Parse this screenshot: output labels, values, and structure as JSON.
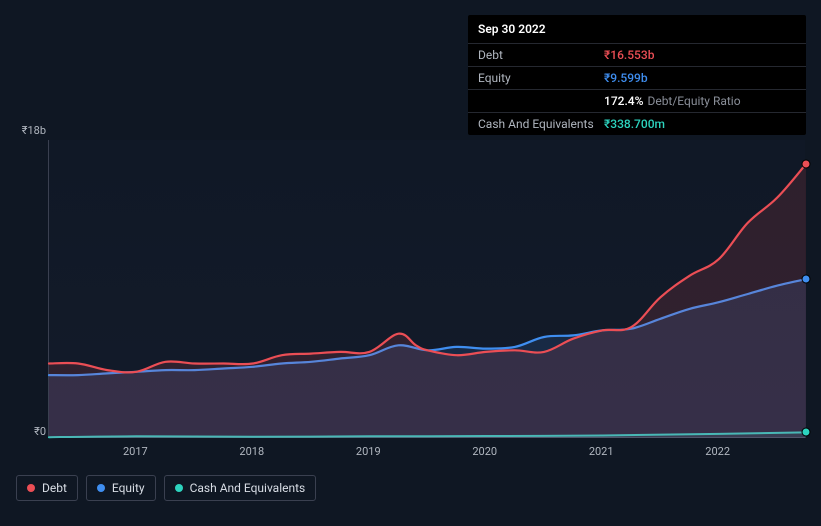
{
  "tooltip": {
    "date": "Sep 30 2022",
    "rows": [
      {
        "label": "Debt",
        "value": "₹16.553b",
        "color": "#eb4e55"
      },
      {
        "label": "Equity",
        "value": "₹9.599b",
        "color": "#3f8ef0"
      },
      {
        "label": "",
        "value": "172.4%",
        "suffix": "Debt/Equity Ratio",
        "color": "#ffffff"
      },
      {
        "label": "Cash And Equivalents",
        "value": "₹338.700m",
        "color": "#2dd4bf"
      }
    ]
  },
  "chart": {
    "type": "area",
    "background": "#0f1723",
    "plot_background": "#101a28",
    "grid_color": "#3a4050",
    "y_axis": {
      "top_label": "₹18b",
      "bottom_label": "₹0",
      "min": 0,
      "max": 18,
      "font_size": 11,
      "color": "#b0b6bf"
    },
    "x_axis": {
      "min": 2016.25,
      "max": 2022.75,
      "ticks": [
        {
          "pos": 2017,
          "label": "2017"
        },
        {
          "pos": 2018,
          "label": "2018"
        },
        {
          "pos": 2019,
          "label": "2019"
        },
        {
          "pos": 2020,
          "label": "2020"
        },
        {
          "pos": 2021,
          "label": "2021"
        },
        {
          "pos": 2022,
          "label": "2022"
        }
      ],
      "font_size": 11,
      "color": "#b0b6bf"
    },
    "series": [
      {
        "name": "Debt",
        "color": "#eb4e55",
        "fill": "rgba(235,78,85,0.14)",
        "width": 2.2,
        "endcap": true,
        "data": [
          {
            "x": 2016.25,
            "y": 4.5
          },
          {
            "x": 2016.5,
            "y": 4.5
          },
          {
            "x": 2016.75,
            "y": 4.1
          },
          {
            "x": 2017.0,
            "y": 4.0
          },
          {
            "x": 2017.25,
            "y": 4.6
          },
          {
            "x": 2017.5,
            "y": 4.5
          },
          {
            "x": 2017.75,
            "y": 4.5
          },
          {
            "x": 2018.0,
            "y": 4.5
          },
          {
            "x": 2018.25,
            "y": 5.0
          },
          {
            "x": 2018.5,
            "y": 5.1
          },
          {
            "x": 2018.75,
            "y": 5.2
          },
          {
            "x": 2019.0,
            "y": 5.2
          },
          {
            "x": 2019.25,
            "y": 6.3
          },
          {
            "x": 2019.4,
            "y": 5.6
          },
          {
            "x": 2019.5,
            "y": 5.3
          },
          {
            "x": 2019.75,
            "y": 5.0
          },
          {
            "x": 2020.0,
            "y": 5.2
          },
          {
            "x": 2020.25,
            "y": 5.3
          },
          {
            "x": 2020.5,
            "y": 5.2
          },
          {
            "x": 2020.75,
            "y": 6.0
          },
          {
            "x": 2021.0,
            "y": 6.5
          },
          {
            "x": 2021.25,
            "y": 6.7
          },
          {
            "x": 2021.5,
            "y": 8.5
          },
          {
            "x": 2021.75,
            "y": 9.8
          },
          {
            "x": 2022.0,
            "y": 10.8
          },
          {
            "x": 2022.25,
            "y": 13.0
          },
          {
            "x": 2022.5,
            "y": 14.5
          },
          {
            "x": 2022.75,
            "y": 16.55
          }
        ]
      },
      {
        "name": "Equity",
        "color": "#3f8ef0",
        "fill": "rgba(63,142,240,0.14)",
        "width": 2.2,
        "endcap": true,
        "data": [
          {
            "x": 2016.25,
            "y": 3.8
          },
          {
            "x": 2016.5,
            "y": 3.8
          },
          {
            "x": 2016.75,
            "y": 3.9
          },
          {
            "x": 2017.0,
            "y": 4.0
          },
          {
            "x": 2017.25,
            "y": 4.1
          },
          {
            "x": 2017.5,
            "y": 4.1
          },
          {
            "x": 2017.75,
            "y": 4.2
          },
          {
            "x": 2018.0,
            "y": 4.3
          },
          {
            "x": 2018.25,
            "y": 4.5
          },
          {
            "x": 2018.5,
            "y": 4.6
          },
          {
            "x": 2018.75,
            "y": 4.8
          },
          {
            "x": 2019.0,
            "y": 5.0
          },
          {
            "x": 2019.25,
            "y": 5.6
          },
          {
            "x": 2019.5,
            "y": 5.3
          },
          {
            "x": 2019.75,
            "y": 5.5
          },
          {
            "x": 2020.0,
            "y": 5.4
          },
          {
            "x": 2020.25,
            "y": 5.5
          },
          {
            "x": 2020.5,
            "y": 6.1
          },
          {
            "x": 2020.75,
            "y": 6.2
          },
          {
            "x": 2021.0,
            "y": 6.5
          },
          {
            "x": 2021.25,
            "y": 6.6
          },
          {
            "x": 2021.5,
            "y": 7.2
          },
          {
            "x": 2021.75,
            "y": 7.8
          },
          {
            "x": 2022.0,
            "y": 8.2
          },
          {
            "x": 2022.25,
            "y": 8.7
          },
          {
            "x": 2022.5,
            "y": 9.2
          },
          {
            "x": 2022.75,
            "y": 9.6
          }
        ]
      },
      {
        "name": "Cash And Equivalents",
        "color": "#2dd4bf",
        "fill": "rgba(45,212,191,0.10)",
        "width": 2.0,
        "endcap": true,
        "data": [
          {
            "x": 2016.25,
            "y": 0.05
          },
          {
            "x": 2017.0,
            "y": 0.1
          },
          {
            "x": 2018.0,
            "y": 0.08
          },
          {
            "x": 2019.0,
            "y": 0.1
          },
          {
            "x": 2020.0,
            "y": 0.12
          },
          {
            "x": 2021.0,
            "y": 0.15
          },
          {
            "x": 2022.0,
            "y": 0.25
          },
          {
            "x": 2022.75,
            "y": 0.34
          }
        ]
      }
    ],
    "legend": {
      "items": [
        {
          "label": "Debt",
          "color": "#eb4e55"
        },
        {
          "label": "Equity",
          "color": "#3f8ef0"
        },
        {
          "label": "Cash And Equivalents",
          "color": "#2dd4bf"
        }
      ],
      "font_size": 12,
      "border_color": "#3a4050"
    }
  }
}
